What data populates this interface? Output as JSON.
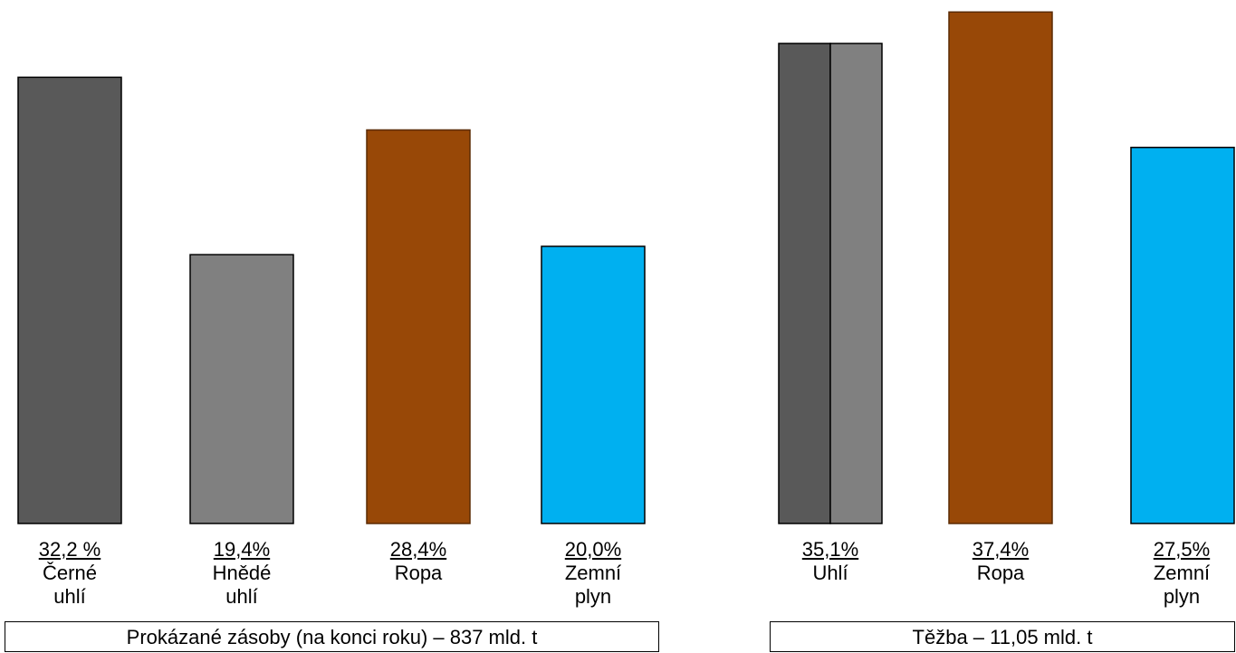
{
  "chart_data": [
    {
      "type": "bar",
      "title": "Prokázané zásoby (na konci roku) – 837 mld. t",
      "categories": [
        {
          "pct": "32,2 %",
          "label": "Černé uhlí"
        },
        {
          "pct": "19,4%",
          "label": "Hnědé uhlí"
        },
        {
          "pct": "28,4%",
          "label": "Ropa"
        },
        {
          "pct": "20,0%",
          "label": "Zemní plyn"
        }
      ],
      "values": [
        32.2,
        19.4,
        28.4,
        20.0
      ],
      "colors": [
        "#595959",
        "#808080",
        "#984807",
        "#00b0f0"
      ]
    },
    {
      "type": "bar",
      "title": "Těžba – 11,05 mld. t",
      "categories": [
        {
          "pct": "35,1%",
          "label": "Uhlí"
        },
        {
          "pct": "37,4%",
          "label": "Ropa"
        },
        {
          "pct": "27,5%",
          "label": "Zemní plyn"
        }
      ],
      "values": [
        35.1,
        37.4,
        27.5
      ],
      "colors": [
        "#595959",
        "#984807",
        "#00b0f0"
      ],
      "split_colors": {
        "0": [
          "#595959",
          "#808080"
        ]
      }
    }
  ]
}
